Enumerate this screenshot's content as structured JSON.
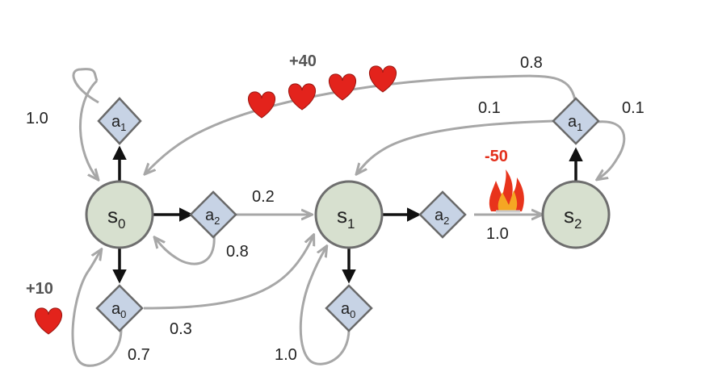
{
  "diagram": {
    "states": [
      {
        "name": "s",
        "sub": "0"
      },
      {
        "name": "s",
        "sub": "1"
      },
      {
        "name": "s",
        "sub": "2"
      }
    ],
    "actions": [
      {
        "name": "a",
        "sub": "1"
      },
      {
        "name": "a",
        "sub": "2"
      },
      {
        "name": "a",
        "sub": "0"
      },
      {
        "name": "a",
        "sub": "2"
      },
      {
        "name": "a",
        "sub": "0"
      },
      {
        "name": "a",
        "sub": "1"
      }
    ],
    "probabilities": {
      "s0_a1_self": "1.0",
      "s0_a2_to_s1": "0.2",
      "s0_a2_to_s0": "0.8",
      "s0_a0_to_s1": "0.3",
      "s0_a0_self": "0.7",
      "s1_a2_to_s2": "1.0",
      "s1_a0_self": "1.0",
      "s2_a1_to_s0": "0.8",
      "s2_a1_to_s1": "0.1",
      "s2_a1_self": "0.1"
    },
    "rewards": {
      "big": "+40",
      "small": "+10",
      "penalty": "-50"
    },
    "colors": {
      "state_fill": "#d7e0cf",
      "action_fill": "#c7d3e5",
      "transition_gray": "#a7a7a7",
      "heart_red": "#e3231c",
      "penalty_red": "#e3301c"
    },
    "icons": [
      "heart-icon",
      "fire-icon"
    ]
  }
}
